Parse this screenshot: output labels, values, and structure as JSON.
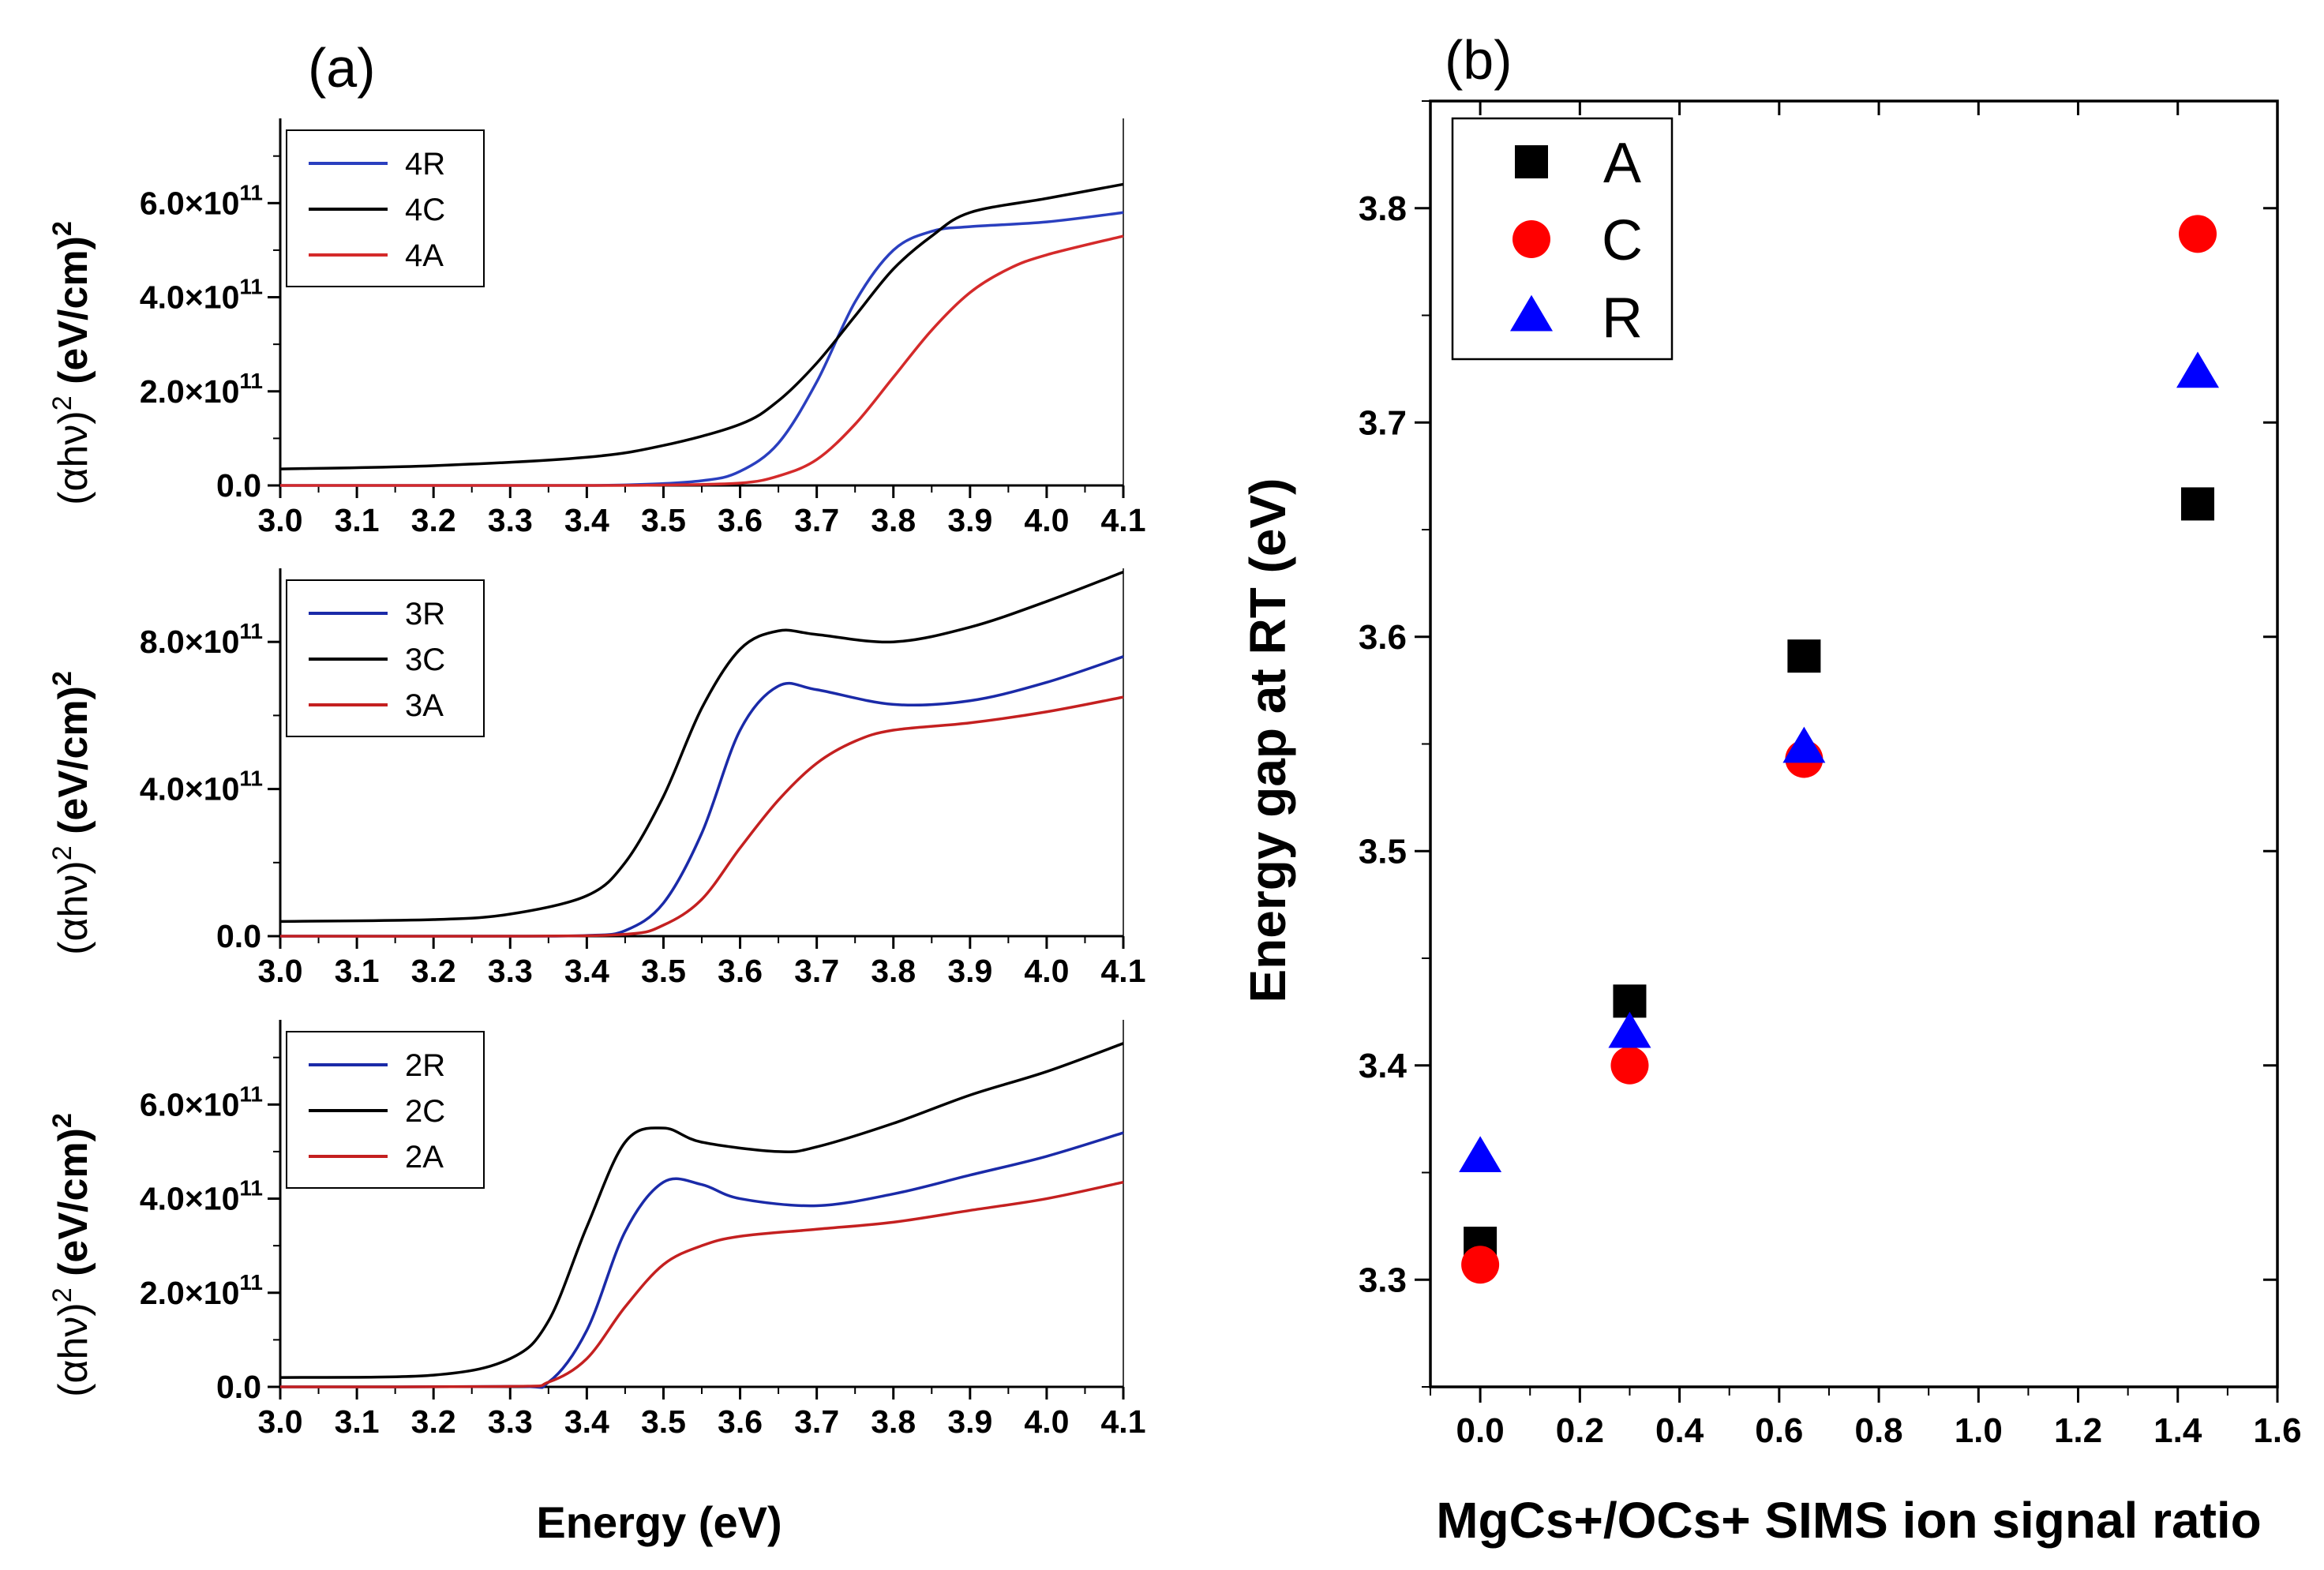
{
  "panel_a": {
    "label": "(a)",
    "xlabel": "Energy (eV)",
    "ylabel_prefix": "(αhν)",
    "ylabel_sup": "2",
    "ylabel_unit": " (eV/cm)",
    "ylabel_unit_sup": "2",
    "x_ticks": [
      "3.0",
      "3.1",
      "3.2",
      "3.3",
      "3.4",
      "3.5",
      "3.6",
      "3.7",
      "3.8",
      "3.9",
      "4.0",
      "4.1"
    ]
  },
  "panel_b": {
    "label": "(b)"
  },
  "chart_data": [
    {
      "type": "line",
      "xlim": [
        3.0,
        4.1
      ],
      "ylim": [
        0,
        780000000000.0
      ],
      "y_ticks": [
        {
          "value": 0,
          "label": "0.0",
          "sup": ""
        },
        {
          "value": 200000000000.0,
          "label": "2.0×10",
          "sup": "11"
        },
        {
          "value": 400000000000.0,
          "label": "4.0×10",
          "sup": "11"
        },
        {
          "value": 600000000000.0,
          "label": "6.0×10",
          "sup": "11"
        }
      ],
      "legend_position": "top-left",
      "series": [
        {
          "name": "4R",
          "color": "#2a3fbf",
          "x": [
            3.0,
            3.3,
            3.45,
            3.55,
            3.6,
            3.65,
            3.7,
            3.75,
            3.8,
            3.85,
            3.9,
            4.0,
            4.1
          ],
          "y": [
            0,
            0.0,
            1000000000.0,
            10000000000.0,
            30000000000.0,
            90000000000.0,
            220000000000.0,
            390000000000.0,
            500000000000.0,
            540000000000.0,
            550000000000.0,
            560000000000.0,
            580000000000.0
          ]
        },
        {
          "name": "4C",
          "color": "#000000",
          "x": [
            3.0,
            3.2,
            3.4,
            3.5,
            3.6,
            3.65,
            3.7,
            3.75,
            3.8,
            3.85,
            3.9,
            4.0,
            4.1
          ],
          "y": [
            35000000000.0,
            42000000000.0,
            60000000000.0,
            85000000000.0,
            130000000000.0,
            180000000000.0,
            260000000000.0,
            360000000000.0,
            460000000000.0,
            530000000000.0,
            580000000000.0,
            610000000000.0,
            640000000000.0
          ]
        },
        {
          "name": "4A",
          "color": "#d42a2a",
          "x": [
            3.0,
            3.4,
            3.5,
            3.6,
            3.65,
            3.7,
            3.75,
            3.8,
            3.85,
            3.9,
            3.95,
            4.0,
            4.1
          ],
          "y": [
            0,
            0,
            1000000000.0,
            5000000000.0,
            20000000000.0,
            55000000000.0,
            130000000000.0,
            230000000000.0,
            330000000000.0,
            410000000000.0,
            460000000000.0,
            490000000000.0,
            530000000000.0
          ]
        }
      ]
    },
    {
      "type": "line",
      "xlim": [
        3.0,
        4.1
      ],
      "ylim": [
        0,
        1000000000000.0
      ],
      "y_ticks": [
        {
          "value": 0,
          "label": "0.0",
          "sup": ""
        },
        {
          "value": 400000000000.0,
          "label": "4.0×10",
          "sup": "11"
        },
        {
          "value": 800000000000.0,
          "label": "8.0×10",
          "sup": "11"
        }
      ],
      "legend_position": "top-left",
      "series": [
        {
          "name": "3R",
          "color": "#1a2aa8",
          "x": [
            3.0,
            3.3,
            3.4,
            3.45,
            3.5,
            3.55,
            3.6,
            3.65,
            3.7,
            3.8,
            3.9,
            4.0,
            4.1
          ],
          "y": [
            0,
            0,
            2000000000.0,
            15000000000.0,
            90000000000.0,
            280000000000.0,
            560000000000.0,
            680000000000.0,
            670000000000.0,
            630000000000.0,
            640000000000.0,
            690000000000.0,
            760000000000.0
          ]
        },
        {
          "name": "3C",
          "color": "#000000",
          "x": [
            3.0,
            3.2,
            3.3,
            3.4,
            3.45,
            3.5,
            3.55,
            3.6,
            3.65,
            3.7,
            3.8,
            3.9,
            4.0,
            4.1
          ],
          "y": [
            40000000000.0,
            45000000000.0,
            60000000000.0,
            110000000000.0,
            200000000000.0,
            380000000000.0,
            620000000000.0,
            780000000000.0,
            830000000000.0,
            820000000000.0,
            800000000000.0,
            840000000000.0,
            910000000000.0,
            990000000000.0
          ]
        },
        {
          "name": "3A",
          "color": "#c42020",
          "x": [
            3.0,
            3.3,
            3.45,
            3.5,
            3.55,
            3.6,
            3.65,
            3.7,
            3.75,
            3.8,
            3.9,
            4.0,
            4.1
          ],
          "y": [
            0,
            0,
            5000000000.0,
            30000000000.0,
            100000000000.0,
            240000000000.0,
            370000000000.0,
            470000000000.0,
            530000000000.0,
            560000000000.0,
            580000000000.0,
            610000000000.0,
            650000000000.0
          ]
        }
      ]
    },
    {
      "type": "line",
      "xlim": [
        3.0,
        4.1
      ],
      "ylim": [
        0,
        780000000000.0
      ],
      "y_ticks": [
        {
          "value": 0,
          "label": "0.0",
          "sup": ""
        },
        {
          "value": 200000000000.0,
          "label": "2.0×10",
          "sup": "11"
        },
        {
          "value": 400000000000.0,
          "label": "4.0×10",
          "sup": "11"
        },
        {
          "value": 600000000000.0,
          "label": "6.0×10",
          "sup": "11"
        }
      ],
      "legend_position": "top-left",
      "series": [
        {
          "name": "2R",
          "color": "#1a2aa8",
          "x": [
            3.0,
            3.3,
            3.35,
            3.4,
            3.45,
            3.5,
            3.55,
            3.6,
            3.7,
            3.8,
            3.9,
            4.0,
            4.1
          ],
          "y": [
            0,
            1000000000.0,
            10000000000.0,
            120000000000.0,
            330000000000.0,
            435000000000.0,
            430000000000.0,
            400000000000.0,
            385000000000.0,
            410000000000.0,
            450000000000.0,
            490000000000.0,
            540000000000.0
          ]
        },
        {
          "name": "2C",
          "color": "#000000",
          "x": [
            3.0,
            3.2,
            3.3,
            3.35,
            3.4,
            3.45,
            3.5,
            3.55,
            3.65,
            3.7,
            3.8,
            3.9,
            4.0,
            4.1
          ],
          "y": [
            20000000000.0,
            25000000000.0,
            60000000000.0,
            140000000000.0,
            340000000000.0,
            520000000000.0,
            550000000000.0,
            520000000000.0,
            500000000000.0,
            510000000000.0,
            560000000000.0,
            620000000000.0,
            670000000000.0,
            730000000000.0
          ]
        },
        {
          "name": "2A",
          "color": "#c42020",
          "x": [
            3.0,
            3.3,
            3.35,
            3.4,
            3.45,
            3.5,
            3.55,
            3.6,
            3.7,
            3.8,
            3.9,
            4.0,
            4.1
          ],
          "y": [
            0,
            1000000000.0,
            10000000000.0,
            60000000000.0,
            170000000000.0,
            260000000000.0,
            300000000000.0,
            320000000000.0,
            335000000000.0,
            350000000000.0,
            375000000000.0,
            400000000000.0,
            435000000000.0
          ]
        }
      ]
    },
    {
      "type": "scatter",
      "xlabel": "MgCs+/OCs+ SIMS ion signal ratio",
      "ylabel": "Energy gap at RT (eV)",
      "xlim": [
        -0.1,
        1.6
      ],
      "ylim": [
        3.25,
        3.85
      ],
      "x_ticks": [
        "0.0",
        "0.2",
        "0.4",
        "0.6",
        "0.8",
        "1.0",
        "1.2",
        "1.4",
        "1.6"
      ],
      "y_ticks": [
        "3.3",
        "3.4",
        "3.5",
        "3.6",
        "3.7",
        "3.8"
      ],
      "legend_position": "top-left",
      "series": [
        {
          "name": "A",
          "marker": "square",
          "color": "#000000",
          "x": [
            0.0,
            0.3,
            0.65,
            1.44
          ],
          "y": [
            3.317,
            3.43,
            3.591,
            3.662
          ]
        },
        {
          "name": "C",
          "marker": "circle",
          "color": "#ff0000",
          "x": [
            0.0,
            0.3,
            0.65,
            1.44
          ],
          "y": [
            3.307,
            3.4,
            3.543,
            3.788
          ]
        },
        {
          "name": "R",
          "marker": "triangle",
          "color": "#0000ff",
          "x": [
            0.0,
            0.3,
            0.65,
            1.44
          ],
          "y": [
            3.357,
            3.415,
            3.548,
            3.723
          ]
        }
      ]
    }
  ]
}
